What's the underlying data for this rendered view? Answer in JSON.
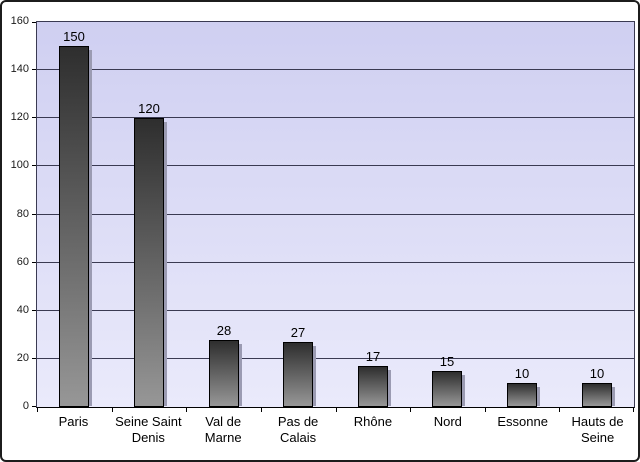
{
  "chart_data": {
    "type": "bar",
    "title": "",
    "categories": [
      "Paris",
      "Seine Saint Denis",
      "Val de Marne",
      "Pas de Calais",
      "Rhône",
      "Nord",
      "Essonne",
      "Hauts de Seine"
    ],
    "values": [
      150,
      120,
      28,
      27,
      17,
      15,
      10,
      10
    ],
    "data_labels": [
      "150",
      "120",
      "28",
      "27",
      "17",
      "15",
      "10",
      "10"
    ],
    "xlabel": "",
    "ylabel": "",
    "ylim": [
      0,
      160
    ],
    "ytick_step": 20,
    "ytick_labels": [
      "160",
      "140",
      "120",
      "100",
      "80",
      "60",
      "40",
      "20",
      "0"
    ],
    "grid": "horizontal",
    "legend": "none",
    "colors": {
      "plot_bg_top": "#cfcff1",
      "plot_bg_bottom": "#eaeafb",
      "bar_gradient_top": "#2e2e2e",
      "bar_gradient_bottom": "#979797",
      "bar_border": "#000000",
      "gridline": "#3a3a52",
      "axis": "#000000",
      "frame_border": "#1c1c1c",
      "shadow": "#9b9bb2",
      "label_text": "#000000"
    }
  }
}
